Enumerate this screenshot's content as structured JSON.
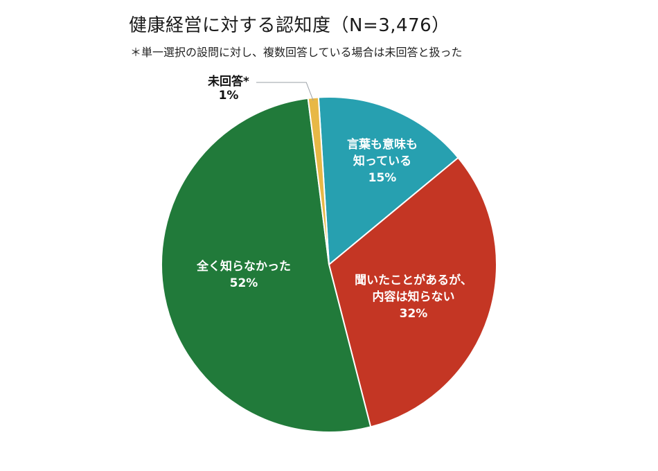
{
  "chart_data": {
    "type": "pie",
    "title": "健康経営に対する認知度（N=3,476）",
    "subtitle": "＊単一選択の設問に対し、複数回答している場合は未回答と扱った",
    "slices": [
      {
        "label": "言葉も意味も知っている",
        "label_lines": [
          "言葉も意味も",
          "知っている"
        ],
        "value": 15,
        "value_label": "15%",
        "color": "#27a0b0",
        "label_color": "#ffffff"
      },
      {
        "label": "聞いたことがあるが、内容は知らない",
        "label_lines": [
          "聞いたことがあるが、",
          "内容は知らない"
        ],
        "value": 32,
        "value_label": "32%",
        "color": "#c43624",
        "label_color": "#ffffff"
      },
      {
        "label": "全く知らなかった",
        "label_lines": [
          "全く知らなかった"
        ],
        "value": 52,
        "value_label": "52%",
        "color": "#217a3a",
        "label_color": "#ffffff"
      },
      {
        "label": "未回答*",
        "label_lines": [
          "未回答*"
        ],
        "value": 1,
        "value_label": "1%",
        "color": "#e8b846",
        "label_color": "#111111"
      }
    ]
  }
}
